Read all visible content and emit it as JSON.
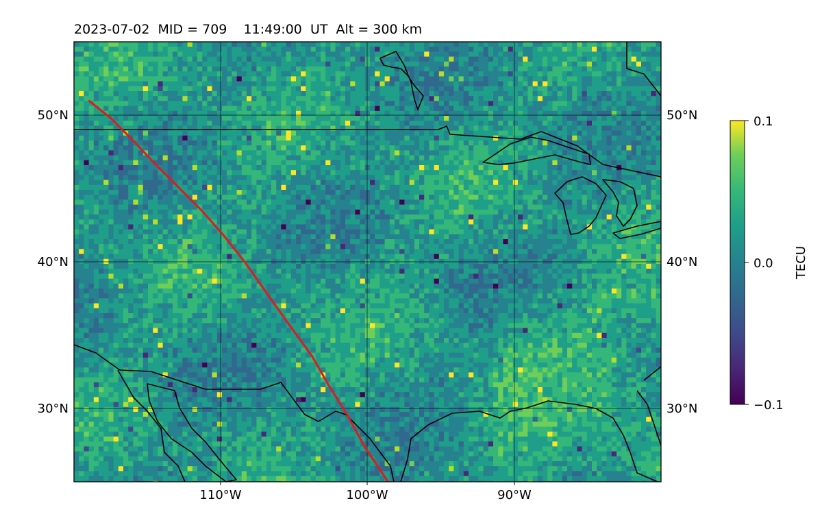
{
  "header": {
    "title": "2023-07-02  MID = 709    11:49:00  UT  Alt = 300 km"
  },
  "map": {
    "lon_range": [
      -120,
      -80
    ],
    "lat_range": [
      25,
      55
    ],
    "lon_ticks": [
      "110°W",
      "100°W",
      "90°W"
    ],
    "lat_ticks": [
      "50°N",
      "40°N",
      "30°N"
    ],
    "track_color": "#e31a1c",
    "track_lonlat": [
      [
        -119.0,
        51.0
      ],
      [
        -117.5,
        49.8
      ],
      [
        -116.0,
        48.3
      ],
      [
        -114.5,
        46.7
      ],
      [
        -113.0,
        45.2
      ],
      [
        -111.3,
        43.5
      ],
      [
        -109.8,
        41.8
      ],
      [
        -108.3,
        39.9
      ],
      [
        -106.9,
        37.9
      ],
      [
        -105.4,
        35.8
      ],
      [
        -103.8,
        33.6
      ],
      [
        -102.6,
        31.5
      ],
      [
        -101.4,
        29.6
      ],
      [
        -100.2,
        27.4
      ],
      [
        -98.6,
        25.0
      ]
    ]
  },
  "colorbar": {
    "label": "TECU",
    "ticks": [
      "0.1",
      "0.0",
      "−0.1"
    ],
    "vmin": -0.1,
    "vmax": 0.1,
    "colormap": "viridis"
  }
}
